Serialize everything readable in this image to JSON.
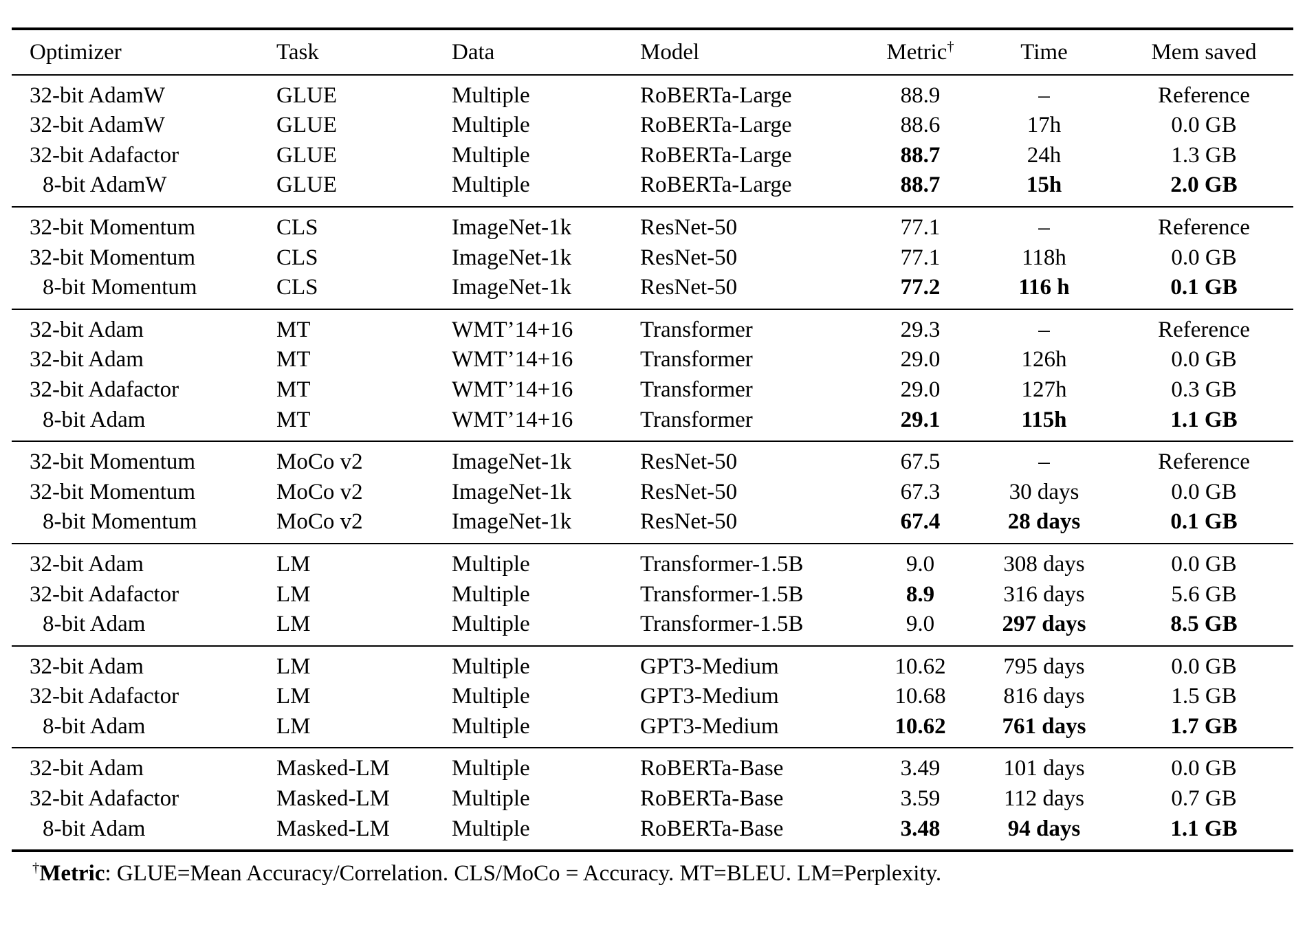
{
  "table": {
    "columns": [
      {
        "key": "optimizer",
        "label": "Optimizer",
        "align": "left"
      },
      {
        "key": "task",
        "label": "Task",
        "align": "left"
      },
      {
        "key": "data",
        "label": "Data",
        "align": "left"
      },
      {
        "key": "model",
        "label": "Model",
        "align": "left"
      },
      {
        "key": "metric",
        "label": "Metric",
        "sup": "†",
        "align": "center"
      },
      {
        "key": "time",
        "label": "Time",
        "align": "center"
      },
      {
        "key": "mem",
        "label": "Mem saved",
        "align": "center"
      }
    ],
    "groups": [
      {
        "rows": [
          {
            "optimizer": "32-bit AdamW",
            "task": "GLUE",
            "data": "Multiple",
            "model": "RoBERTa-Large",
            "metric": "88.9",
            "time": "–",
            "mem": "Reference",
            "bold": [],
            "indent": false
          },
          {
            "optimizer": "32-bit AdamW",
            "task": "GLUE",
            "data": "Multiple",
            "model": "RoBERTa-Large",
            "metric": "88.6",
            "time": "17h",
            "mem": "0.0 GB",
            "bold": [],
            "indent": false
          },
          {
            "optimizer": "32-bit Adafactor",
            "task": "GLUE",
            "data": "Multiple",
            "model": "RoBERTa-Large",
            "metric": "88.7",
            "time": "24h",
            "mem": "1.3 GB",
            "bold": [
              "metric"
            ],
            "indent": false
          },
          {
            "optimizer": "8-bit AdamW",
            "task": "GLUE",
            "data": "Multiple",
            "model": "RoBERTa-Large",
            "metric": "88.7",
            "time": "15h",
            "mem": "2.0 GB",
            "bold": [
              "metric",
              "time",
              "mem"
            ],
            "indent": true
          }
        ]
      },
      {
        "rows": [
          {
            "optimizer": "32-bit Momentum",
            "task": "CLS",
            "data": "ImageNet-1k",
            "model": "ResNet-50",
            "metric": "77.1",
            "time": "–",
            "mem": "Reference",
            "bold": [],
            "indent": false
          },
          {
            "optimizer": "32-bit Momentum",
            "task": "CLS",
            "data": "ImageNet-1k",
            "model": "ResNet-50",
            "metric": "77.1",
            "time": "118h",
            "mem": "0.0 GB",
            "bold": [],
            "indent": false
          },
          {
            "optimizer": "8-bit Momentum",
            "task": "CLS",
            "data": "ImageNet-1k",
            "model": "ResNet-50",
            "metric": "77.2",
            "time": "116 h",
            "mem": "0.1 GB",
            "bold": [
              "metric",
              "time",
              "mem"
            ],
            "indent": true
          }
        ]
      },
      {
        "rows": [
          {
            "optimizer": "32-bit Adam",
            "task": "MT",
            "data": "WMT’14+16",
            "model": "Transformer",
            "metric": "29.3",
            "time": "–",
            "mem": "Reference",
            "bold": [],
            "indent": false
          },
          {
            "optimizer": "32-bit Adam",
            "task": "MT",
            "data": "WMT’14+16",
            "model": "Transformer",
            "metric": "29.0",
            "time": "126h",
            "mem": "0.0 GB",
            "bold": [],
            "indent": false
          },
          {
            "optimizer": "32-bit Adafactor",
            "task": "MT",
            "data": "WMT’14+16",
            "model": "Transformer",
            "metric": "29.0",
            "time": "127h",
            "mem": "0.3 GB",
            "bold": [],
            "indent": false
          },
          {
            "optimizer": "8-bit Adam",
            "task": "MT",
            "data": "WMT’14+16",
            "model": "Transformer",
            "metric": "29.1",
            "time": "115h",
            "mem": "1.1 GB",
            "bold": [
              "metric",
              "time",
              "mem"
            ],
            "indent": true
          }
        ]
      },
      {
        "rows": [
          {
            "optimizer": "32-bit Momentum",
            "task": "MoCo v2",
            "data": "ImageNet-1k",
            "model": "ResNet-50",
            "metric": "67.5",
            "time": "–",
            "mem": "Reference",
            "bold": [],
            "indent": false
          },
          {
            "optimizer": "32-bit Momentum",
            "task": "MoCo v2",
            "data": "ImageNet-1k",
            "model": "ResNet-50",
            "metric": "67.3",
            "time": "30 days",
            "mem": "0.0 GB",
            "bold": [],
            "indent": false
          },
          {
            "optimizer": "8-bit Momentum",
            "task": "MoCo v2",
            "data": "ImageNet-1k",
            "model": "ResNet-50",
            "metric": "67.4",
            "time": "28 days",
            "mem": "0.1 GB",
            "bold": [
              "metric",
              "time",
              "mem"
            ],
            "indent": true
          }
        ]
      },
      {
        "rows": [
          {
            "optimizer": "32-bit Adam",
            "task": "LM",
            "data": "Multiple",
            "model": "Transformer-1.5B",
            "metric": "9.0",
            "time": "308 days",
            "mem": "0.0 GB",
            "bold": [],
            "indent": false
          },
          {
            "optimizer": "32-bit Adafactor",
            "task": "LM",
            "data": "Multiple",
            "model": "Transformer-1.5B",
            "metric": "8.9",
            "time": "316 days",
            "mem": "5.6 GB",
            "bold": [
              "metric"
            ],
            "indent": false
          },
          {
            "optimizer": "8-bit Adam",
            "task": "LM",
            "data": "Multiple",
            "model": "Transformer-1.5B",
            "metric": "9.0",
            "time": "297 days",
            "mem": "8.5 GB",
            "bold": [
              "time",
              "mem"
            ],
            "indent": true
          }
        ]
      },
      {
        "rows": [
          {
            "optimizer": "32-bit Adam",
            "task": "LM",
            "data": "Multiple",
            "model": "GPT3-Medium",
            "metric": "10.62",
            "time": "795 days",
            "mem": "0.0 GB",
            "bold": [],
            "indent": false
          },
          {
            "optimizer": "32-bit Adafactor",
            "task": "LM",
            "data": "Multiple",
            "model": "GPT3-Medium",
            "metric": "10.68",
            "time": "816 days",
            "mem": "1.5 GB",
            "bold": [],
            "indent": false
          },
          {
            "optimizer": "8-bit Adam",
            "task": "LM",
            "data": "Multiple",
            "model": "GPT3-Medium",
            "metric": "10.62",
            "time": "761 days",
            "mem": "1.7 GB",
            "bold": [
              "metric",
              "time",
              "mem"
            ],
            "indent": true
          }
        ]
      },
      {
        "rows": [
          {
            "optimizer": "32-bit Adam",
            "task": "Masked-LM",
            "data": "Multiple",
            "model": "RoBERTa-Base",
            "metric": "3.49",
            "time": "101 days",
            "mem": "0.0 GB",
            "bold": [],
            "indent": false
          },
          {
            "optimizer": "32-bit Adafactor",
            "task": "Masked-LM",
            "data": "Multiple",
            "model": "RoBERTa-Base",
            "metric": "3.59",
            "time": "112 days",
            "mem": "0.7 GB",
            "bold": [],
            "indent": false
          },
          {
            "optimizer": "8-bit Adam",
            "task": "Masked-LM",
            "data": "Multiple",
            "model": "RoBERTa-Base",
            "metric": "3.48",
            "time": "94 days",
            "mem": "1.1 GB",
            "bold": [
              "metric",
              "time",
              "mem"
            ],
            "indent": true
          }
        ]
      }
    ]
  },
  "footnote": {
    "dagger": "†",
    "bold_label": "Metric",
    "text": ": GLUE=Mean Accuracy/Correlation. CLS/MoCo = Accuracy. MT=BLEU. LM=Perplexity."
  }
}
